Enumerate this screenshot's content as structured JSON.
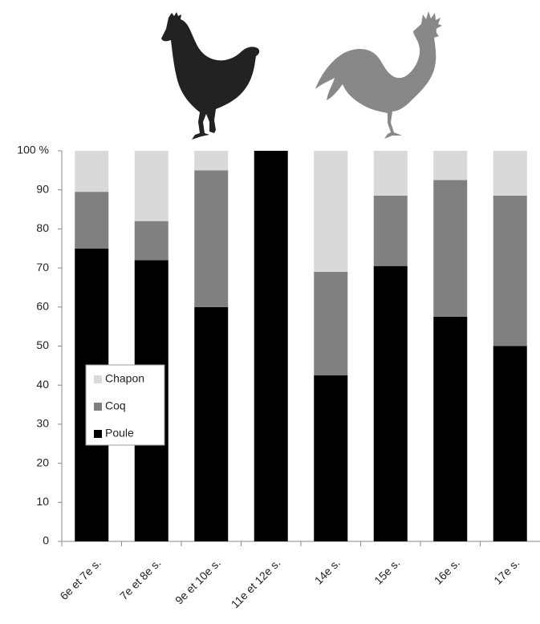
{
  "chart_data": {
    "type": "stacked_bar",
    "categories": [
      "6e et 7e s.",
      "7e et 8e s.",
      "9e et 10e s.",
      "11e et 12e s.",
      "14e s.",
      "15e s.",
      "16e s.",
      "17e s."
    ],
    "series": [
      {
        "name": "Poule",
        "color": "#000000",
        "values": [
          75,
          72,
          60,
          100,
          42.5,
          70.5,
          57.5,
          50
        ]
      },
      {
        "name": "Coq",
        "color": "#808080",
        "values": [
          14.5,
          10,
          35,
          0,
          26.5,
          18,
          35,
          38.5
        ]
      },
      {
        "name": "Chapon",
        "color": "#d9d9d9",
        "values": [
          10.5,
          18,
          5,
          0,
          31,
          11.5,
          7.5,
          11.5
        ]
      }
    ],
    "ylim": [
      0,
      100
    ],
    "yticks": [
      0,
      10,
      20,
      30,
      40,
      50,
      60,
      70,
      80,
      90,
      {
        "value": 100,
        "label": "100 %"
      }
    ]
  }
}
